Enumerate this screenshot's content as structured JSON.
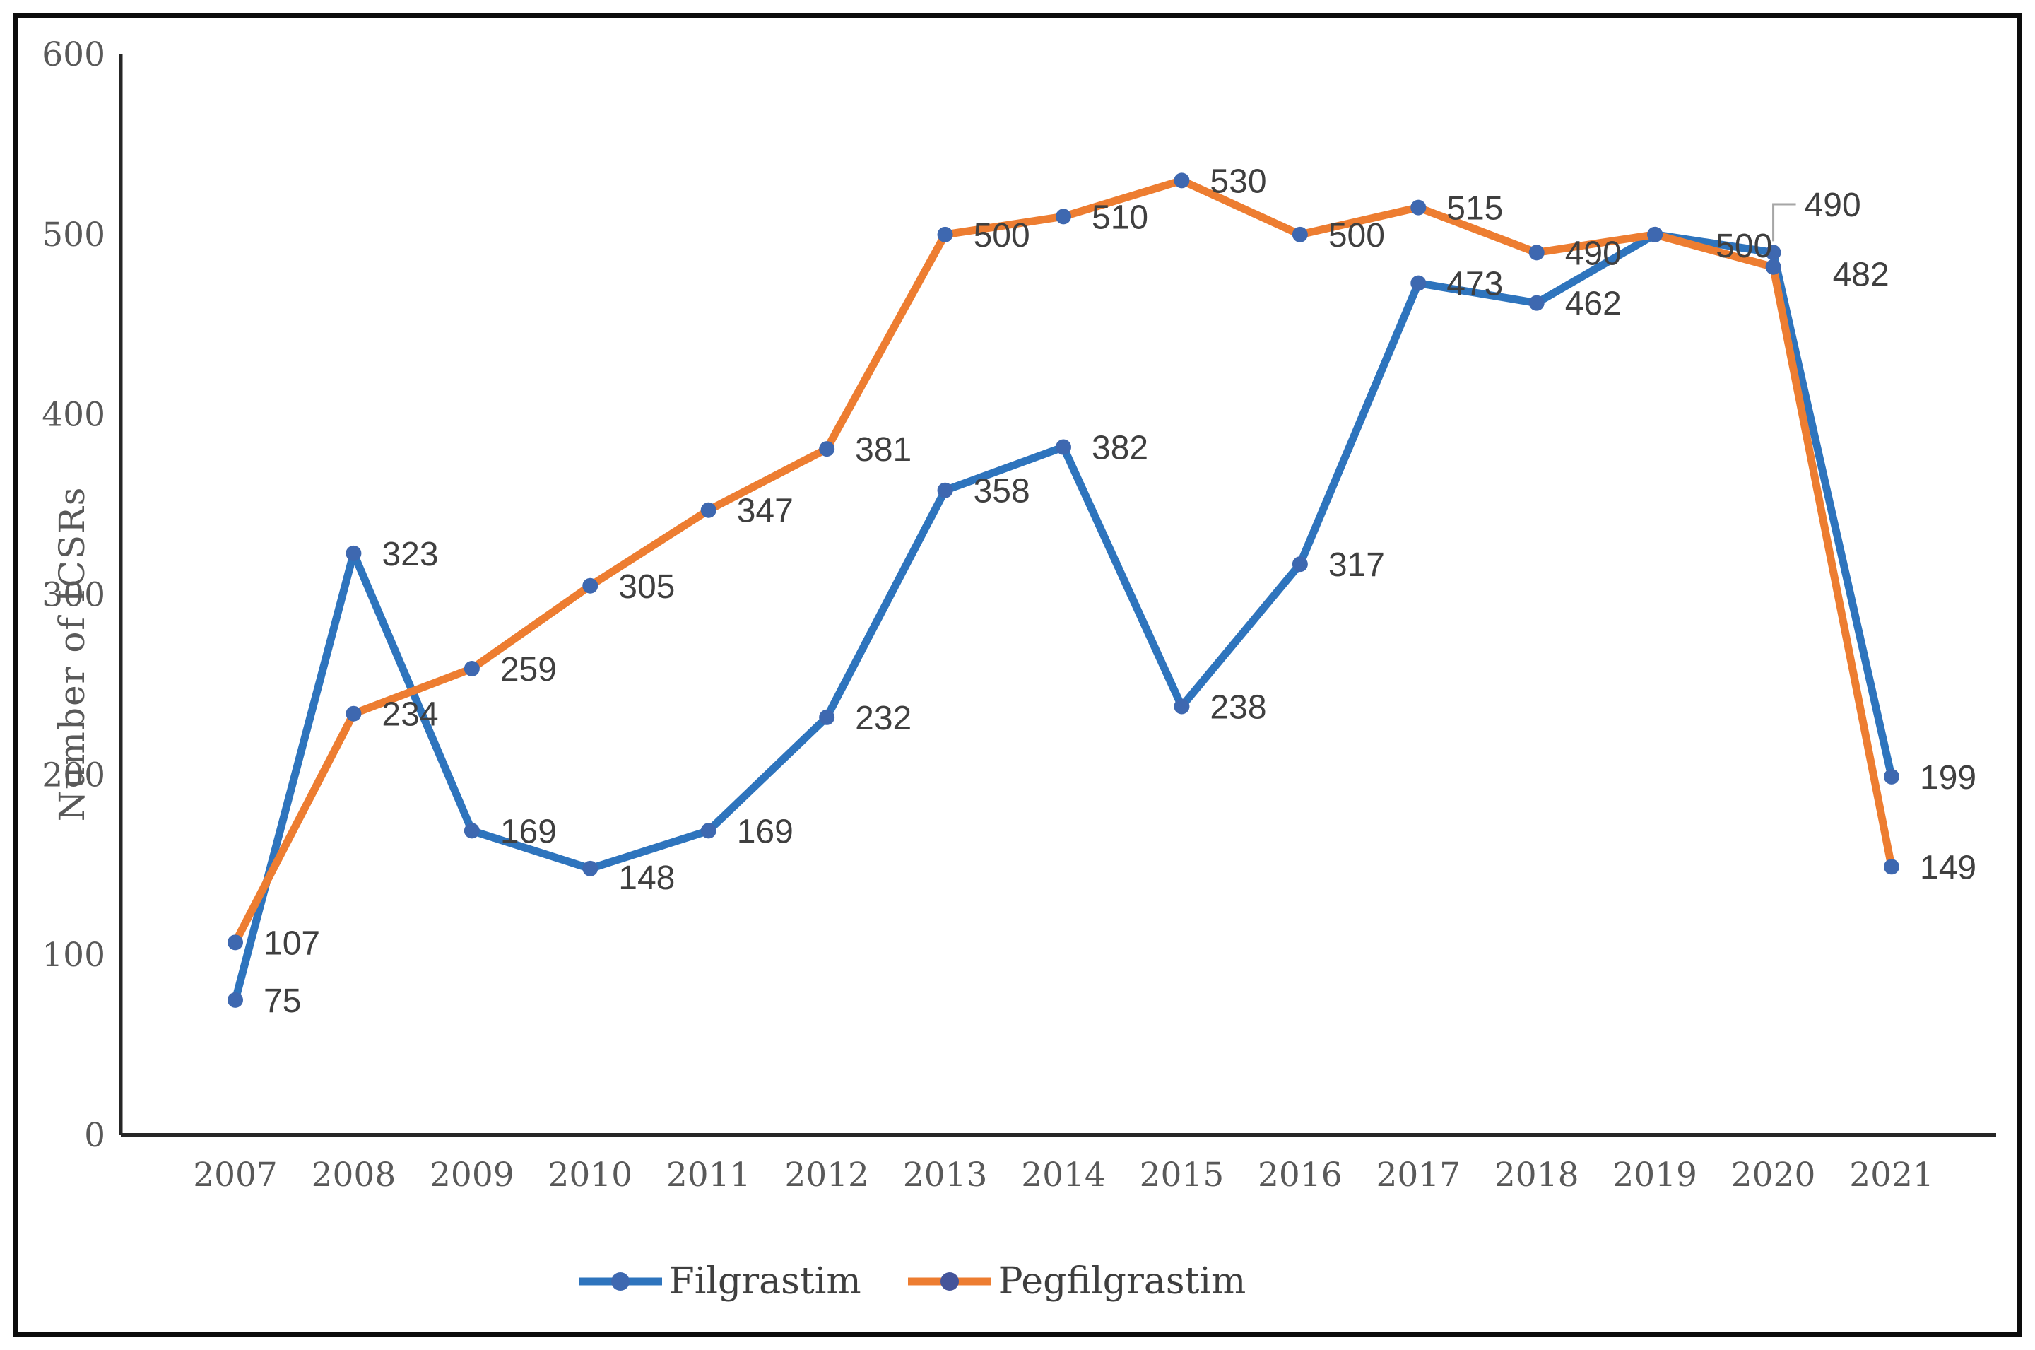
{
  "chart_data": {
    "type": "line",
    "title": "",
    "xlabel": "",
    "ylabel": "Number of ICSRs",
    "ylim": [
      0,
      600
    ],
    "yticks": [
      0,
      100,
      200,
      300,
      400,
      500,
      600
    ],
    "grid": false,
    "legend_position": "bottom",
    "categories": [
      "2007",
      "2008",
      "2009",
      "2010",
      "2011",
      "2012",
      "2013",
      "2014",
      "2015",
      "2016",
      "2017",
      "2018",
      "2019",
      "2020",
      "2021"
    ],
    "series": [
      {
        "name": "Filgrastim",
        "color": "#2e74bd",
        "values": [
          75,
          323,
          169,
          148,
          169,
          232,
          358,
          382,
          238,
          317,
          473,
          462,
          500,
          490,
          199
        ]
      },
      {
        "name": "Pegfilgrastim",
        "color": "#ed7d31",
        "values": [
          107,
          234,
          259,
          305,
          347,
          381,
          500,
          510,
          530,
          500,
          515,
          490,
          500,
          482,
          149
        ]
      }
    ],
    "data_labels_shown": true,
    "annotations": {
      "callout": {
        "series": "Filgrastim",
        "category": "2020",
        "value": 490
      },
      "hidden_labels": [
        {
          "series": "Pegfilgrastim",
          "category": "2019"
        }
      ]
    },
    "colors": {
      "filgrastim_line": "#2e74bd",
      "pegfilgrastim_line": "#ed7d31",
      "marker": "#3e68b0",
      "legend_marker_blue": "#3e68b0",
      "legend_marker_orange": "#44549a",
      "axis": "#262626",
      "tick_text": "#595959",
      "data_label_text": "#3f3f3f",
      "leader_line": "#a6a6a6",
      "frame_border": "#0c0c0c"
    }
  }
}
